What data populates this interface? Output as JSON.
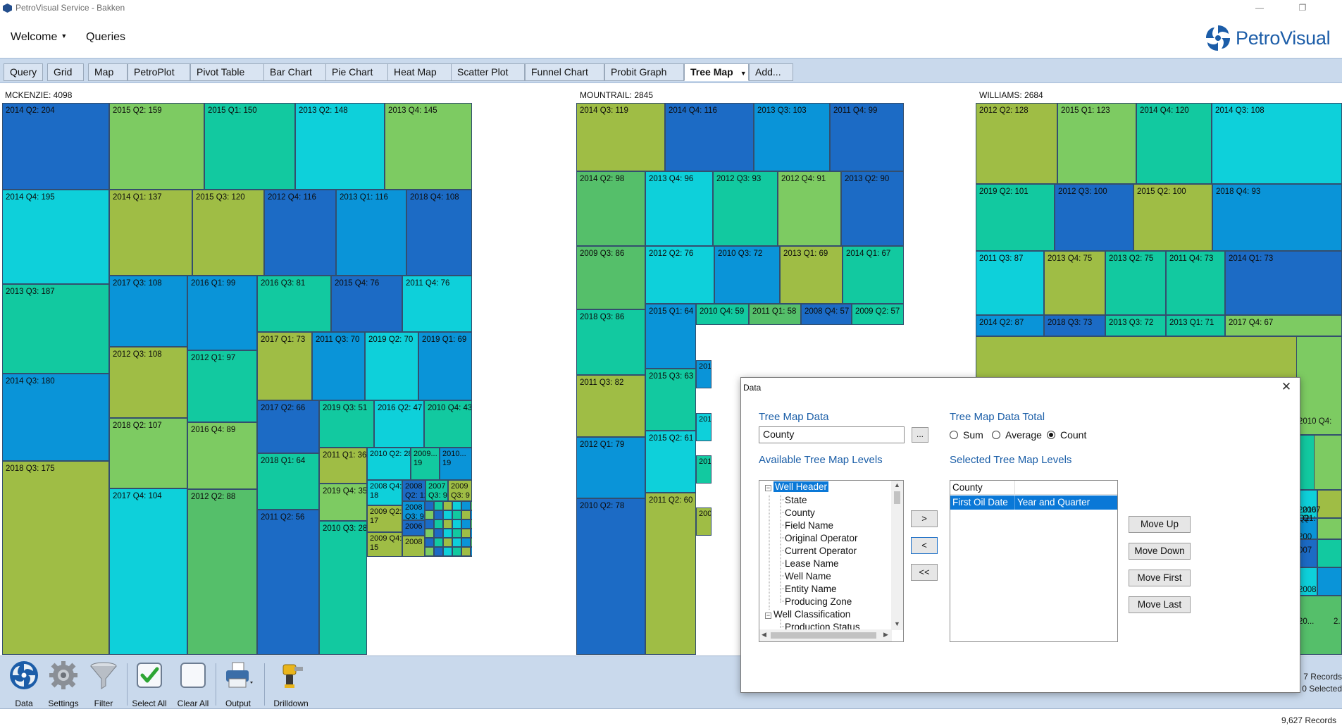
{
  "window": {
    "title": "PetroVisual Service - Bakken",
    "minimize": "—",
    "restore": "❐",
    "close": "✕"
  },
  "menu": {
    "welcome": "Welcome",
    "queries": "Queries"
  },
  "brand": {
    "logo_text": "PetroVisual",
    "color": "#1c5da8"
  },
  "tabs": [
    "Query",
    "Grid",
    "Map",
    "PetroPlot",
    "Pivot Table",
    "Bar Chart",
    "Pie Chart",
    "Heat Map",
    "Scatter Plot",
    "Funnel Chart",
    "Probit Graph",
    "Tree Map",
    "Add..."
  ],
  "active_tab": "Tree Map",
  "treemap": {
    "palette": {
      "dblue": "#1c6bc5",
      "blue": "#0a94d8",
      "cyan": "#0ed0da",
      "teal": "#12c9a0",
      "green": "#55bf6a",
      "lgreen": "#7dcb62",
      "olive": "#9fbd45"
    },
    "counties": [
      {
        "label": "MCKENZIE: 4098",
        "cells": [
          "2014 Q2: 204",
          "2014 Q4: 195",
          "2013 Q3: 187",
          "2014 Q3: 180",
          "2018 Q3: 175",
          "2015 Q2: 159",
          "2015 Q1: 150",
          "2013 Q2: 148",
          "2013 Q4: 145",
          "2014 Q1: 137",
          "2015 Q3: 120",
          "2012 Q4: 116",
          "2013 Q1: 116",
          "2018 Q4: 108",
          "2017 Q3: 108",
          "2012 Q3: 108",
          "2018 Q2: 107",
          "2017 Q4: 104",
          "2016 Q1: 99",
          "2012 Q1: 97",
          "2016 Q4: 89",
          "2012 Q2: 88",
          "2016 Q3: 81",
          "2015 Q4: 76",
          "2011 Q4: 76",
          "2017 Q1: 73",
          "2011 Q3: 70",
          "2019 Q2: 70",
          "2019 Q1: 69",
          "2017 Q2: 66",
          "2018 Q1: 64",
          "2011 Q2: 56",
          "2019 Q3: 51",
          "2016 Q2: 47",
          "2010 Q4: 43",
          "2011 Q1: 36",
          "2019 Q4: 35",
          "2010 Q3: 28",
          "2010 Q2: 28",
          "2009...\n19",
          "2010...\n19",
          "2008 Q4:\n18",
          "2009 Q2:\n17",
          "2009 Q4:\n15",
          "2008\nQ2: 12",
          "2007\nQ3: 9",
          "2009\nQ3: 9",
          "2008\nQ3: 9",
          "2006",
          "2008"
        ]
      },
      {
        "label": "MOUNTRAIL: 2845",
        "cells": [
          "2014 Q3: 119",
          "2014 Q4: 116",
          "2013 Q3: 103",
          "2011 Q4: 99",
          "2014 Q2: 98",
          "2013 Q4: 96",
          "2012 Q3: 93",
          "2012 Q4: 91",
          "2013 Q2: 90",
          "2009 Q3: 86",
          "2012 Q2: 76",
          "2010 Q3: 72",
          "2013 Q1: 69",
          "2014 Q1: 67",
          "2018 Q3: 86",
          "2015 Q1: 64",
          "2010 Q4: 59",
          "2011 Q1: 58",
          "2008 Q4: 57",
          "2009 Q2: 57",
          "2011 Q3: 82",
          "2015 Q3: 63",
          "2012 Q1: 79",
          "2015 Q2: 61",
          "2010 Q2: 78",
          "2011 Q2: 60",
          "201",
          "201",
          "201",
          "200"
        ]
      },
      {
        "label": "WILLIAMS: 2684",
        "cells": [
          "2012 Q2: 128",
          "2015 Q1: 123",
          "2014 Q4: 120",
          "2014 Q3: 108",
          "2019 Q2: 101",
          "2012 Q3: 100",
          "2015 Q2: 100",
          "2018 Q4: 93",
          "2011 Q3: 87",
          "2013 Q4: 75",
          "2013 Q2: 75",
          "2011 Q4: 73",
          "2014 Q1: 73",
          "2014 Q2: 87",
          "2018 Q3: 73",
          "2013 Q3: 72",
          "2013 Q1: 71",
          "2017 Q4: 67",
          "2010 Q4:",
          "2Q:",
          "2016\nQ2:",
          "2007\nQ1:",
          "200",
          "007",
          "2008",
          "20...",
          "2."
        ]
      }
    ]
  },
  "toolbar": {
    "buttons": [
      "Data",
      "Settings",
      "Filter",
      "Select All",
      "Clear All",
      "Output",
      "Drilldown"
    ],
    "records_line1": "7 Records",
    "records_line2": "0 Selected"
  },
  "status": {
    "records": "9,627 Records"
  },
  "dialog": {
    "title": "Data",
    "close": "✕",
    "tree_map_data_label": "Tree Map Data",
    "tree_map_data_value": "County",
    "browse_label": "...",
    "total_label": "Tree Map Data Total",
    "total_options": [
      "Sum",
      "Average",
      "Count"
    ],
    "total_selected": "Count",
    "available_label": "Available Tree Map Levels",
    "available_tree": [
      {
        "text": "Well Header",
        "level": 0,
        "expander": "−",
        "selected": true
      },
      {
        "text": "State",
        "level": 1
      },
      {
        "text": "County",
        "level": 1
      },
      {
        "text": "Field Name",
        "level": 1
      },
      {
        "text": "Original Operator",
        "level": 1
      },
      {
        "text": "Current Operator",
        "level": 1
      },
      {
        "text": "Lease Name",
        "level": 1
      },
      {
        "text": "Well Name",
        "level": 1
      },
      {
        "text": "Entity Name",
        "level": 1
      },
      {
        "text": "Producing Zone",
        "level": 1
      },
      {
        "text": "Well Classification",
        "level": 0,
        "expander": "−"
      },
      {
        "text": "Production Status",
        "level": 1
      }
    ],
    "move_right": ">",
    "move_left": "<",
    "move_all_left": "<<",
    "selected_label": "Selected Tree Map Levels",
    "selected_levels": [
      {
        "field": "County",
        "detail": ""
      },
      {
        "field": "First Oil Date",
        "detail": "Year and Quarter",
        "selected": true
      }
    ],
    "move_up": "Move Up",
    "move_down": "Move Down",
    "move_first": "Move First",
    "move_last": "Move Last"
  }
}
